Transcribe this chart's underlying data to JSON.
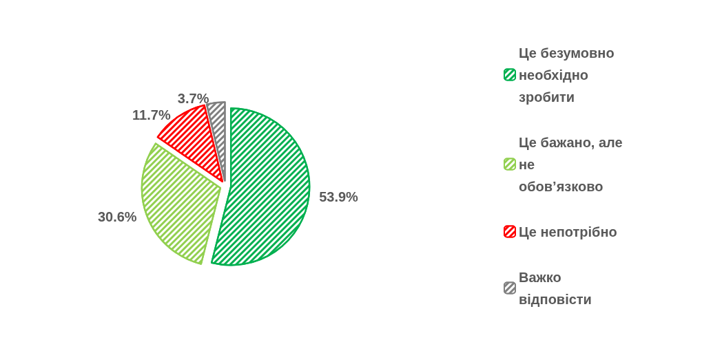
{
  "chart_data": {
    "type": "pie",
    "categories": [
      "Це безумовно необхідно зробити",
      "Це бажано, але не обов’язково",
      "Це непотрібно",
      "Важко відповісти"
    ],
    "values": [
      53.9,
      30.6,
      11.7,
      3.7
    ],
    "value_labels": [
      "53.9%",
      "30.6%",
      "11.7%",
      "3.7%"
    ],
    "colors": [
      "#00b050",
      "#92d050",
      "#ff0000",
      "#808080"
    ],
    "legend": "right"
  }
}
